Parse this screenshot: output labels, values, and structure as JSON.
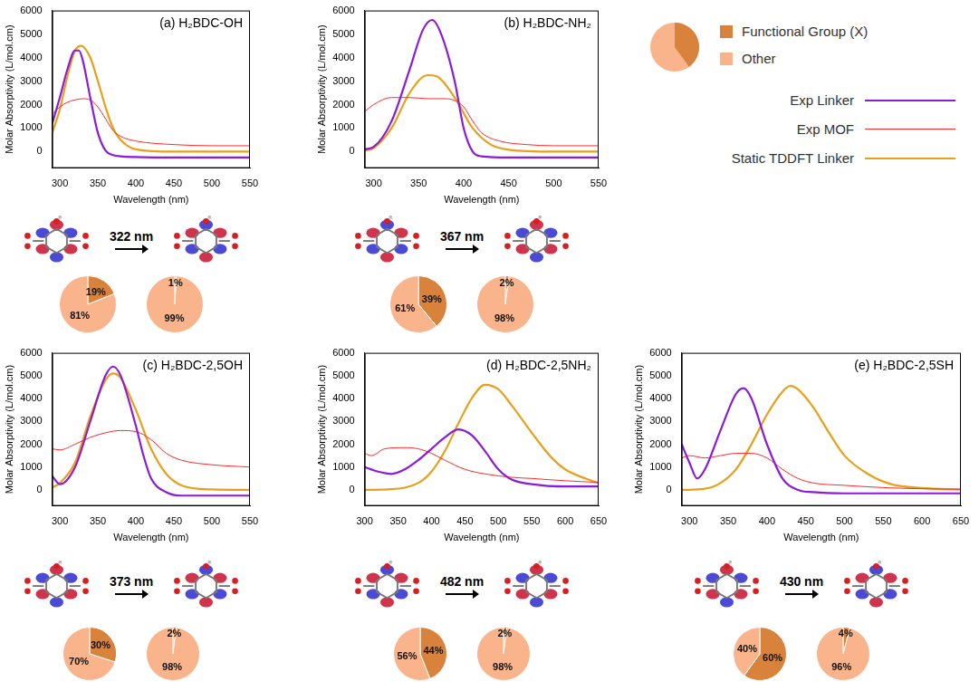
{
  "legend": "right",
  "chart_data": [
    {
      "type": "line",
      "title": "(a) H₂BDC-OH",
      "xlabel": "Wavelength (nm)",
      "ylabel": "Molar Absorptivity (L/mol.cm)",
      "xlim": [
        290,
        550
      ],
      "xticks": [
        300,
        350,
        400,
        450,
        500,
        550
      ],
      "ylim": [
        -700,
        6000
      ],
      "yticks": [
        0,
        1000,
        2000,
        3000,
        4000,
        5000,
        6000
      ],
      "series": [
        {
          "name": "Exp Linker",
          "color": "#8b1ad9",
          "x": [
            290,
            300,
            310,
            320,
            325,
            330,
            340,
            350,
            360,
            370,
            380,
            400,
            450,
            500,
            550
          ],
          "values": [
            1200,
            2300,
            3500,
            4300,
            4300,
            3900,
            2300,
            800,
            50,
            -150,
            -200,
            -230,
            -250,
            -250,
            -250
          ]
        },
        {
          "name": "Exp MOF",
          "color": "#ff2a2a",
          "x": [
            290,
            300,
            310,
            320,
            330,
            340,
            350,
            360,
            370,
            380,
            400,
            450,
            500,
            550
          ],
          "values": [
            1600,
            1900,
            2100,
            2200,
            2250,
            2200,
            1900,
            1400,
            900,
            650,
            450,
            300,
            250,
            250
          ]
        },
        {
          "name": "Static TDDFT Linker",
          "color": "#e8a01a",
          "x": [
            290,
            300,
            310,
            320,
            328,
            340,
            350,
            360,
            370,
            380,
            400,
            450,
            500,
            550
          ],
          "values": [
            800,
            1800,
            3200,
            4300,
            4500,
            4000,
            3000,
            1900,
            1000,
            500,
            100,
            0,
            0,
            0
          ]
        }
      ],
      "annotation": "322 nm",
      "pies": [
        {
          "type": "pie",
          "categories": [
            "Functional Group (X)",
            "Other"
          ],
          "values": [
            19,
            81
          ],
          "value_labels": [
            "19%",
            "81%"
          ],
          "colors": [
            "#d9823b",
            "#f9b48b"
          ]
        },
        {
          "type": "pie",
          "categories": [
            "Functional Group (X)",
            "Other"
          ],
          "values": [
            1,
            99
          ],
          "value_labels": [
            "1%",
            "99%"
          ],
          "colors": [
            "#d9823b",
            "#f9b48b"
          ]
        }
      ]
    },
    {
      "type": "line",
      "title": "(b) H₂BDC-NH₂",
      "xlabel": "Wavelength (nm)",
      "ylabel": "Molar Absorptivity (L/mol.cm)",
      "xlim": [
        290,
        550
      ],
      "xticks": [
        300,
        350,
        400,
        450,
        500,
        550
      ],
      "ylim": [
        -700,
        6000
      ],
      "yticks": [
        0,
        1000,
        2000,
        3000,
        4000,
        5000,
        6000
      ],
      "series": [
        {
          "name": "Exp Linker",
          "color": "#8b1ad9",
          "x": [
            290,
            300,
            320,
            340,
            355,
            365,
            375,
            390,
            400,
            410,
            420,
            450,
            550
          ],
          "values": [
            100,
            200,
            1300,
            3500,
            5200,
            5600,
            5000,
            3000,
            1000,
            0,
            -200,
            -250,
            -250
          ]
        },
        {
          "name": "Exp MOF",
          "color": "#ff2a2a",
          "x": [
            290,
            300,
            320,
            340,
            360,
            380,
            400,
            410,
            420,
            440,
            470,
            500,
            550
          ],
          "values": [
            1700,
            2000,
            2300,
            2300,
            2250,
            2250,
            1900,
            1300,
            800,
            450,
            300,
            250,
            250
          ]
        },
        {
          "name": "Static TDDFT Linker",
          "color": "#e8a01a",
          "x": [
            290,
            300,
            320,
            340,
            360,
            370,
            390,
            410,
            430,
            450,
            500,
            550
          ],
          "values": [
            50,
            150,
            1000,
            2500,
            3250,
            3200,
            2300,
            1000,
            300,
            80,
            0,
            0
          ]
        }
      ],
      "annotation": "367 nm",
      "pies": [
        {
          "type": "pie",
          "categories": [
            "Functional Group (X)",
            "Other"
          ],
          "values": [
            39,
            61
          ],
          "value_labels": [
            "39%",
            "61%"
          ],
          "colors": [
            "#d9823b",
            "#f9b48b"
          ]
        },
        {
          "type": "pie",
          "categories": [
            "Functional Group (X)",
            "Other"
          ],
          "values": [
            2,
            98
          ],
          "value_labels": [
            "2%",
            "98%"
          ],
          "colors": [
            "#d9823b",
            "#f9b48b"
          ]
        }
      ]
    },
    {
      "type": "line",
      "title": "(c) H₂BDC-2,5OH",
      "xlabel": "Wavelength (nm)",
      "ylabel": "Molar Absorptivity (L/mol.cm)",
      "xlim": [
        290,
        550
      ],
      "xticks": [
        300,
        350,
        400,
        450,
        500,
        550
      ],
      "ylim": [
        -700,
        6000
      ],
      "yticks": [
        0,
        1000,
        2000,
        3000,
        4000,
        5000,
        6000
      ],
      "series": [
        {
          "name": "Exp Linker",
          "color": "#8b1ad9",
          "x": [
            290,
            300,
            320,
            340,
            360,
            370,
            380,
            400,
            410,
            420,
            440,
            460,
            550
          ],
          "values": [
            600,
            250,
            1000,
            3000,
            5000,
            5400,
            5000,
            2800,
            1500,
            500,
            -100,
            -250,
            -250
          ]
        },
        {
          "name": "Exp MOF",
          "color": "#ff2a2a",
          "x": [
            290,
            300,
            320,
            340,
            360,
            380,
            400,
            420,
            440,
            460,
            500,
            550
          ],
          "values": [
            1800,
            1750,
            2000,
            2300,
            2500,
            2600,
            2550,
            2200,
            1600,
            1300,
            1100,
            1000
          ]
        },
        {
          "name": "Static TDDFT Linker",
          "color": "#e8a01a",
          "x": [
            290,
            300,
            320,
            340,
            360,
            370,
            380,
            400,
            420,
            440,
            460,
            500,
            550
          ],
          "values": [
            100,
            300,
            1200,
            3200,
            4800,
            5100,
            4900,
            3500,
            1800,
            700,
            200,
            20,
            0
          ]
        }
      ],
      "annotation": "373 nm",
      "pies": [
        {
          "type": "pie",
          "categories": [
            "Functional Group (X)",
            "Other"
          ],
          "values": [
            30,
            70
          ],
          "value_labels": [
            "30%",
            "70%"
          ],
          "colors": [
            "#d9823b",
            "#f9b48b"
          ]
        },
        {
          "type": "pie",
          "categories": [
            "Functional Group (X)",
            "Other"
          ],
          "values": [
            2,
            98
          ],
          "value_labels": [
            "2%",
            "98%"
          ],
          "colors": [
            "#d9823b",
            "#f9b48b"
          ]
        }
      ]
    },
    {
      "type": "line",
      "title": "(d) H₂BDC-2,5NH₂",
      "xlabel": "Wavelength (nm)",
      "ylabel": "Molar Absorptivity (L/mol.cm)",
      "xlim": [
        300,
        650
      ],
      "xticks": [
        300,
        350,
        400,
        450,
        500,
        550,
        600,
        650
      ],
      "ylim": [
        -700,
        6000
      ],
      "yticks": [
        0,
        1000,
        2000,
        3000,
        4000,
        5000,
        6000
      ],
      "series": [
        {
          "name": "Exp Linker",
          "color": "#8b1ad9",
          "x": [
            300,
            320,
            340,
            360,
            380,
            400,
            420,
            440,
            460,
            480,
            500,
            520,
            550,
            600,
            650
          ],
          "values": [
            1000,
            800,
            700,
            900,
            1300,
            1800,
            2300,
            2650,
            2400,
            1700,
            900,
            450,
            250,
            150,
            150
          ]
        },
        {
          "name": "Exp MOF",
          "color": "#ff2a2a",
          "x": [
            300,
            310,
            330,
            360,
            380,
            400,
            420,
            450,
            480,
            520,
            550,
            600,
            650
          ],
          "values": [
            1600,
            1500,
            1800,
            1850,
            1800,
            1600,
            1300,
            900,
            700,
            550,
            500,
            400,
            330
          ]
        },
        {
          "name": "Static TDDFT Linker",
          "color": "#e8a01a",
          "x": [
            300,
            340,
            380,
            400,
            420,
            440,
            460,
            480,
            500,
            520,
            550,
            580,
            600,
            630,
            650
          ],
          "values": [
            0,
            30,
            300,
            800,
            1700,
            2900,
            4000,
            4600,
            4400,
            3700,
            2500,
            1400,
            900,
            500,
            300
          ]
        }
      ],
      "annotation": "482 nm",
      "pies": [
        {
          "type": "pie",
          "categories": [
            "Functional Group (X)",
            "Other"
          ],
          "values": [
            44,
            56
          ],
          "value_labels": [
            "44%",
            "56%"
          ],
          "colors": [
            "#d9823b",
            "#f9b48b"
          ]
        },
        {
          "type": "pie",
          "categories": [
            "Functional Group (X)",
            "Other"
          ],
          "values": [
            2,
            98
          ],
          "value_labels": [
            "2%",
            "98%"
          ],
          "colors": [
            "#d9823b",
            "#f9b48b"
          ]
        }
      ]
    },
    {
      "type": "line",
      "title": "(e) H₂BDC-2,5SH",
      "xlabel": "Wavelength (nm)",
      "ylabel": "Molar Absorptivity (L/mol.cm)",
      "xlim": [
        290,
        650
      ],
      "xticks": [
        300,
        350,
        400,
        450,
        500,
        550,
        600,
        650
      ],
      "ylim": [
        -700,
        6000
      ],
      "yticks": [
        0,
        1000,
        2000,
        3000,
        4000,
        5000,
        6000
      ],
      "series": [
        {
          "name": "Exp Linker",
          "color": "#8b1ad9",
          "x": [
            290,
            300,
            310,
            320,
            340,
            360,
            370,
            380,
            400,
            420,
            440,
            460,
            500,
            650
          ],
          "values": [
            2000,
            1200,
            500,
            900,
            2600,
            4200,
            4450,
            4000,
            2000,
            500,
            0,
            -100,
            -150,
            -150
          ]
        },
        {
          "name": "Exp MOF",
          "color": "#ff2a2a",
          "x": [
            290,
            300,
            320,
            340,
            360,
            380,
            400,
            420,
            440,
            460,
            500,
            550,
            600,
            650
          ],
          "values": [
            1400,
            1500,
            1400,
            1500,
            1600,
            1600,
            1400,
            900,
            500,
            300,
            200,
            100,
            50,
            30
          ]
        },
        {
          "name": "Static TDDFT Linker",
          "color": "#e8a01a",
          "x": [
            290,
            320,
            340,
            360,
            380,
            400,
            420,
            430,
            440,
            460,
            480,
            500,
            530,
            560,
            600,
            650
          ],
          "values": [
            0,
            50,
            300,
            900,
            2000,
            3300,
            4300,
            4550,
            4400,
            3600,
            2500,
            1500,
            700,
            250,
            80,
            20
          ]
        }
      ],
      "annotation": "430 nm",
      "pies": [
        {
          "type": "pie",
          "categories": [
            "Functional Group (X)",
            "Other"
          ],
          "values": [
            60,
            40
          ],
          "value_labels": [
            "60%",
            "40%"
          ],
          "colors": [
            "#d9823b",
            "#f9b48b"
          ]
        },
        {
          "type": "pie",
          "categories": [
            "Functional Group (X)",
            "Other"
          ],
          "values": [
            4,
            96
          ],
          "value_labels": [
            "4%",
            "96%"
          ],
          "colors": [
            "#d9823b",
            "#f9b48b"
          ]
        }
      ]
    }
  ]
}
